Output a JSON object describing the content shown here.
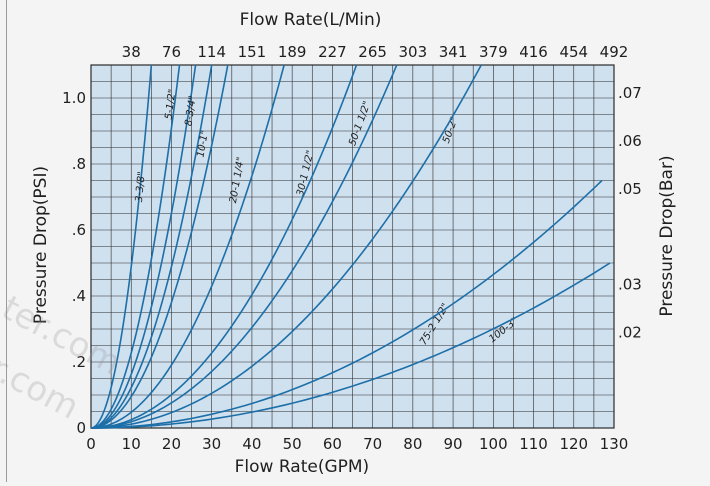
{
  "chart_data": {
    "type": "line",
    "title": "Flow Rate(L/Min)",
    "xlabel": "Flow Rate(GPM)",
    "ylabel": "Pressure Drop(PSI)",
    "y2label": "Pressure Drop(Bar)",
    "xlim": [
      0,
      130
    ],
    "ylim": [
      0,
      1.1
    ],
    "grid": true,
    "x_ticks": [
      "0",
      "10",
      "20",
      "30",
      "40",
      "50",
      "60",
      "70",
      "80",
      "90",
      "100",
      "110",
      "120",
      "130"
    ],
    "y_ticks": [
      {
        "value": 0,
        "label": "0"
      },
      {
        "value": 0.2,
        "label": ".2"
      },
      {
        "value": 0.4,
        "label": ".4"
      },
      {
        "value": 0.6,
        "label": ".6"
      },
      {
        "value": 0.8,
        "label": ".8"
      },
      {
        "value": 1.0,
        "label": "1.0"
      }
    ],
    "top_ticks": [
      {
        "value": 10,
        "label": "38"
      },
      {
        "value": 20,
        "label": "76"
      },
      {
        "value": 30,
        "label": "114"
      },
      {
        "value": 40,
        "label": "151"
      },
      {
        "value": 50,
        "label": "189"
      },
      {
        "value": 60,
        "label": "227"
      },
      {
        "value": 70,
        "label": "265"
      },
      {
        "value": 80,
        "label": "303"
      },
      {
        "value": 90,
        "label": "341"
      },
      {
        "value": 100,
        "label": "379"
      },
      {
        "value": 110,
        "label": "416"
      },
      {
        "value": 120,
        "label": "454"
      },
      {
        "value": 130,
        "label": "492"
      }
    ],
    "right_ticks": [
      {
        "value": 0.29,
        "label": ".02"
      },
      {
        "value": 0.435,
        "label": ".03"
      },
      {
        "value": 0.725,
        "label": ".05"
      },
      {
        "value": 0.87,
        "label": ".06"
      },
      {
        "value": 1.015,
        "label": ".07"
      }
    ],
    "series": [
      {
        "name": "3-3/8\"",
        "x_end": 15,
        "label": {
          "x": 13,
          "y": 0.73
        }
      },
      {
        "name": "5-1/2\"",
        "x_end": 22,
        "label": {
          "x": 20.5,
          "y": 0.98
        }
      },
      {
        "name": "8-3/4\"",
        "x_end": 26,
        "label": {
          "x": 25.5,
          "y": 0.96
        }
      },
      {
        "name": "10-1\"",
        "x_end": 30,
        "label": {
          "x": 28.5,
          "y": 0.86
        }
      },
      {
        "name": "20-1 1/4\"",
        "x_end": 34,
        "label": {
          "x": 37,
          "y": 0.75
        }
      },
      {
        "name": "30-1 1/2\"",
        "x_end": 48,
        "label": {
          "x": 54,
          "y": 0.77
        }
      },
      {
        "name": "50-1 1/2\"",
        "x_end": 66,
        "label": {
          "x": 67.5,
          "y": 0.92
        }
      },
      {
        "name": "50-2\"",
        "x_end": 76,
        "label": {
          "x": 90,
          "y": 0.9
        }
      },
      {
        "name": "75-2 1/2\"",
        "x_end": 97,
        "label": {
          "x": 86,
          "y": 0.31
        }
      },
      {
        "name": "100-3\"",
        "x_end": 127,
        "y_end": 0.75,
        "label": {
          "x": 103,
          "y": 0.29
        }
      },
      {
        "name": "",
        "x_end": 129,
        "y_end": 0.5,
        "label": null
      }
    ],
    "line_color": "#1d6fa8",
    "grid_color": "#2b2b2b",
    "plot_background": "#cfe0ef"
  },
  "watermark": [
    "ter.com",
    "r.com"
  ]
}
